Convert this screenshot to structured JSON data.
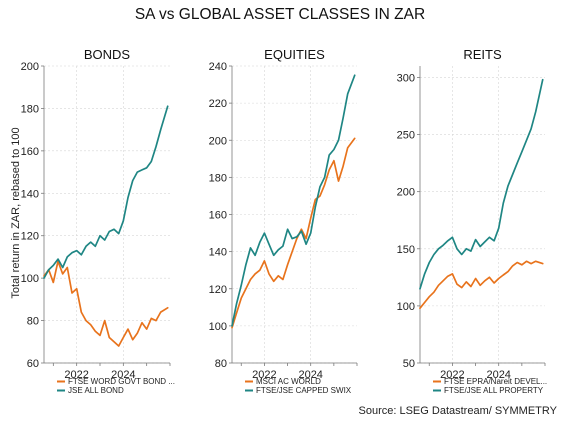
{
  "figure": {
    "title": "SA vs GLOBAL ASSET CLASSES IN ZAR",
    "ylabel": "Total return in ZAR, rebased to 100",
    "source": "Source: LSEG Datastream/ SYMMETRY"
  },
  "colors": {
    "orange": "#E8731C",
    "teal": "#1F8684"
  },
  "chart_data": [
    {
      "type": "line",
      "title": "BONDS",
      "ylim": [
        60,
        200
      ],
      "yticks": [
        60,
        80,
        100,
        120,
        140,
        160,
        180,
        200
      ],
      "xlim": [
        2020.6,
        2026.0
      ],
      "xticks": [
        2022,
        2024
      ],
      "xtick_labels": [
        "2022",
        "2024"
      ],
      "grid": true,
      "legend_position": "bottom",
      "series": [
        {
          "name": "FTSE WORD GOVT BOND ...",
          "color": "#E8731C",
          "x": [
            2020.6,
            2020.8,
            2021.0,
            2021.2,
            2021.4,
            2021.6,
            2021.8,
            2022.0,
            2022.2,
            2022.4,
            2022.6,
            2022.8,
            2023.0,
            2023.2,
            2023.4,
            2023.6,
            2023.8,
            2024.0,
            2024.2,
            2024.4,
            2024.6,
            2024.8,
            2025.0,
            2025.2,
            2025.4,
            2025.6,
            2025.9
          ],
          "values": [
            101,
            104,
            98,
            108,
            102,
            105,
            93,
            95,
            84,
            80,
            78,
            75,
            73,
            80,
            72,
            70,
            68,
            72,
            76,
            71,
            74,
            79,
            76,
            81,
            80,
            84,
            86
          ]
        },
        {
          "name": "JSE ALL BOND",
          "color": "#1F8684",
          "x": [
            2020.6,
            2020.8,
            2021.0,
            2021.2,
            2021.4,
            2021.6,
            2021.8,
            2022.0,
            2022.2,
            2022.4,
            2022.6,
            2022.8,
            2023.0,
            2023.2,
            2023.4,
            2023.6,
            2023.8,
            2024.0,
            2024.2,
            2024.4,
            2024.6,
            2024.8,
            2025.0,
            2025.2,
            2025.4,
            2025.6,
            2025.9
          ],
          "values": [
            100,
            104,
            106,
            109,
            105,
            110,
            112,
            113,
            111,
            115,
            117,
            115,
            120,
            118,
            122,
            123,
            121,
            127,
            138,
            146,
            150,
            151,
            152,
            155,
            162,
            170,
            181
          ]
        }
      ]
    },
    {
      "type": "line",
      "title": "EQUITIES",
      "ylim": [
        80,
        240
      ],
      "yticks": [
        80,
        100,
        120,
        140,
        160,
        180,
        200,
        220,
        240
      ],
      "xlim": [
        2020.6,
        2026.0
      ],
      "xticks": [
        2022,
        2024
      ],
      "xtick_labels": [
        "2022",
        "2024"
      ],
      "grid": true,
      "legend_position": "bottom",
      "series": [
        {
          "name": "MSCI AC WORLD",
          "color": "#E8731C",
          "x": [
            2020.6,
            2020.8,
            2021.0,
            2021.2,
            2021.4,
            2021.6,
            2021.8,
            2022.0,
            2022.2,
            2022.4,
            2022.6,
            2022.8,
            2023.0,
            2023.2,
            2023.4,
            2023.6,
            2023.8,
            2024.0,
            2024.2,
            2024.4,
            2024.6,
            2024.8,
            2025.0,
            2025.2,
            2025.4,
            2025.6,
            2025.9
          ],
          "values": [
            99,
            107,
            115,
            120,
            125,
            128,
            130,
            135,
            128,
            124,
            127,
            125,
            133,
            140,
            147,
            152,
            147,
            158,
            168,
            170,
            176,
            184,
            189,
            178,
            186,
            196,
            201
          ]
        },
        {
          "name": "FTSE/JSE CAPPED SWIX",
          "color": "#1F8684",
          "x": [
            2020.6,
            2020.8,
            2021.0,
            2021.2,
            2021.4,
            2021.6,
            2021.8,
            2022.0,
            2022.2,
            2022.4,
            2022.6,
            2022.8,
            2023.0,
            2023.2,
            2023.4,
            2023.6,
            2023.8,
            2024.0,
            2024.2,
            2024.4,
            2024.6,
            2024.8,
            2025.0,
            2025.2,
            2025.4,
            2025.6,
            2025.9
          ],
          "values": [
            100,
            112,
            122,
            133,
            142,
            138,
            145,
            150,
            144,
            138,
            141,
            143,
            152,
            147,
            148,
            151,
            144,
            150,
            164,
            175,
            180,
            192,
            195,
            200,
            212,
            225,
            235
          ]
        }
      ]
    },
    {
      "type": "line",
      "title": "REITS",
      "ylim": [
        50,
        310
      ],
      "yticks": [
        50,
        100,
        150,
        200,
        250,
        300
      ],
      "xlim": [
        2020.6,
        2026.0
      ],
      "xticks": [
        2022,
        2024
      ],
      "xtick_labels": [
        "2022",
        "2024"
      ],
      "grid": true,
      "legend_position": "bottom",
      "series": [
        {
          "name": "FTSE EPRA/Nareit DEVEL...",
          "color": "#E8731C",
          "x": [
            2020.6,
            2020.8,
            2021.0,
            2021.2,
            2021.4,
            2021.6,
            2021.8,
            2022.0,
            2022.2,
            2022.4,
            2022.6,
            2022.8,
            2023.0,
            2023.2,
            2023.4,
            2023.6,
            2023.8,
            2024.0,
            2024.2,
            2024.4,
            2024.6,
            2024.8,
            2025.0,
            2025.2,
            2025.4,
            2025.6,
            2025.9
          ],
          "values": [
            98,
            103,
            108,
            112,
            118,
            122,
            126,
            128,
            119,
            116,
            121,
            117,
            124,
            118,
            122,
            125,
            120,
            124,
            127,
            130,
            135,
            138,
            136,
            139,
            137,
            139,
            137
          ]
        },
        {
          "name": "FTSE/JSE ALL PROPERTY",
          "color": "#1F8684",
          "x": [
            2020.6,
            2020.8,
            2021.0,
            2021.2,
            2021.4,
            2021.6,
            2021.8,
            2022.0,
            2022.2,
            2022.4,
            2022.6,
            2022.8,
            2023.0,
            2023.2,
            2023.4,
            2023.6,
            2023.8,
            2024.0,
            2024.2,
            2024.4,
            2024.6,
            2024.8,
            2025.0,
            2025.2,
            2025.4,
            2025.6,
            2025.9
          ],
          "values": [
            115,
            128,
            138,
            145,
            150,
            153,
            157,
            160,
            150,
            145,
            150,
            148,
            158,
            152,
            156,
            160,
            157,
            168,
            190,
            205,
            215,
            225,
            235,
            245,
            255,
            270,
            298
          ]
        }
      ]
    }
  ]
}
